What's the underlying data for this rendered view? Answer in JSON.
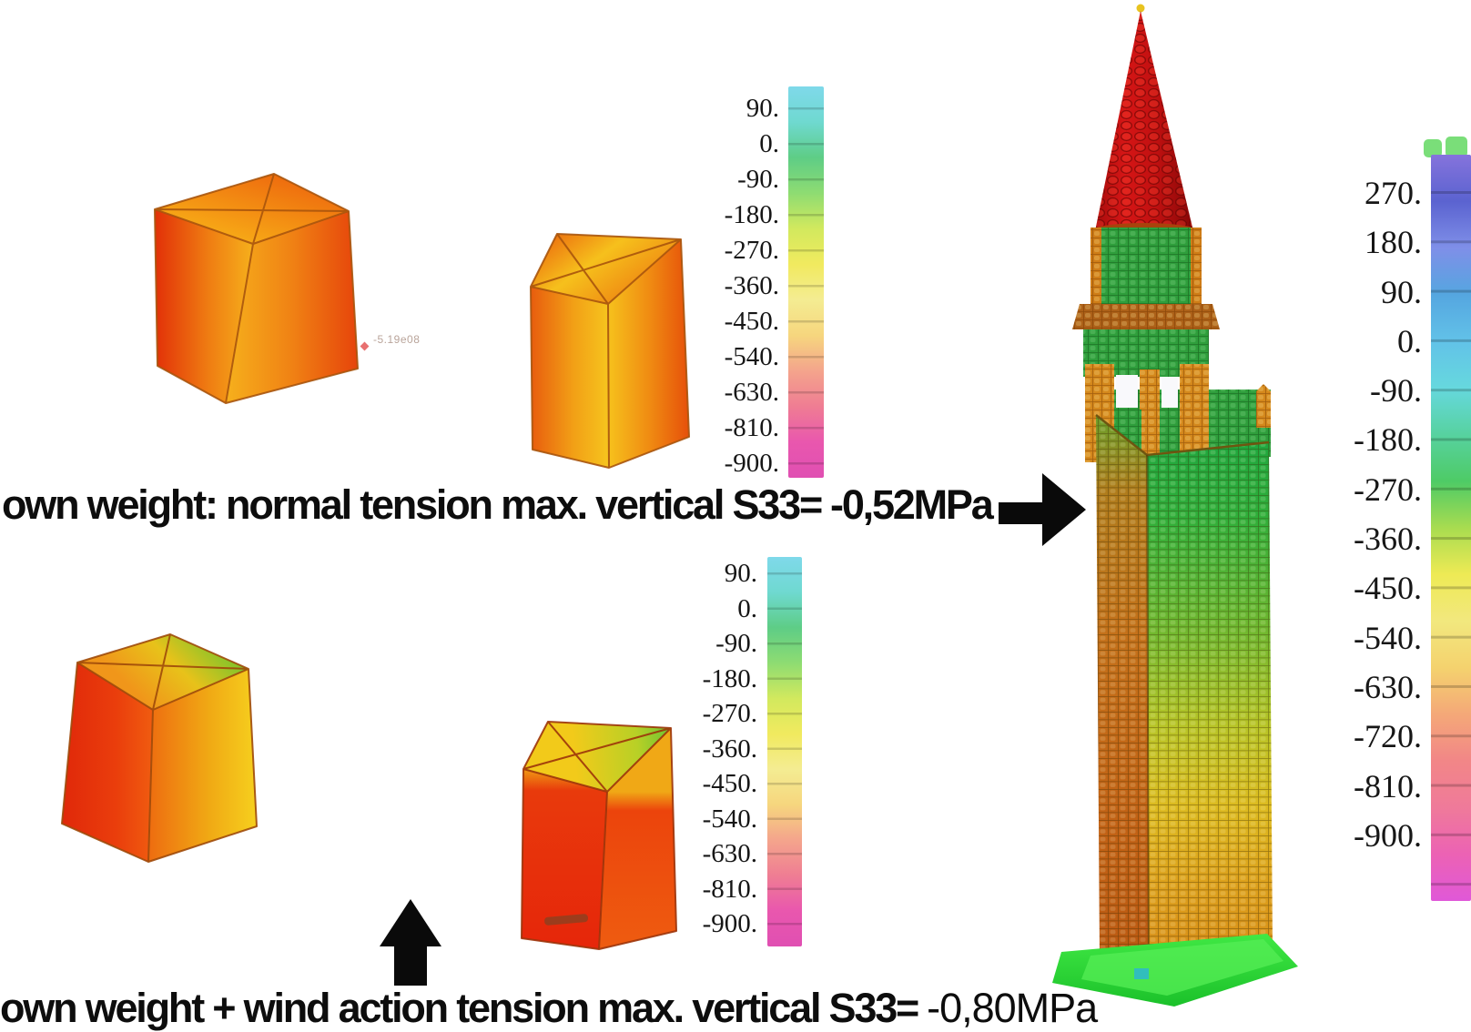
{
  "captions": {
    "top": {
      "text": "own weight: normal tension max. vertical S33=",
      "value": "-0,52MPa"
    },
    "bottom": {
      "text": "own weight + wind action tension max. vertical S33=",
      "value": "-0,80MPa"
    }
  },
  "annotations": {
    "cube_node_value": "-5.19e08"
  },
  "legends": {
    "upper": {
      "values": [
        "90.",
        "0.",
        "-90.",
        "-180.",
        "-270.",
        "-360.",
        "-450.",
        "-540.",
        "-630.",
        "-810.",
        "-900."
      ],
      "colors": [
        "#7fd9ea",
        "#6fd9d0",
        "#5ecd86",
        "#8edc72",
        "#d2e95e",
        "#f1ea5f",
        "#f4ec92",
        "#f6d67e",
        "#f4a48c",
        "#ef7d93",
        "#e957ae",
        "#e04fb2"
      ]
    },
    "lower": {
      "values": [
        "90.",
        "0.",
        "-90.",
        "-180.",
        "-270.",
        "-360.",
        "-450.",
        "-540.",
        "-630.",
        "-810.",
        "-900."
      ],
      "colors": [
        "#7fd9ea",
        "#6fd9d0",
        "#5ecd86",
        "#8edc72",
        "#d2e95e",
        "#f1ea5f",
        "#f4ec92",
        "#f6d67e",
        "#f4a48c",
        "#ef7d93",
        "#e957ae",
        "#e04fb2"
      ]
    },
    "tower": {
      "values": [
        "270.",
        "180.",
        "90.",
        "0.",
        "-90.",
        "-180.",
        "-270.",
        "-360.",
        "-450.",
        "-540.",
        "-630.",
        "-720.",
        "-810.",
        "-900."
      ],
      "colors": [
        "#8573dc",
        "#5b63d0",
        "#7f8fe8",
        "#55a6e0",
        "#62c2e8",
        "#66d8de",
        "#57d2a0",
        "#4ecb66",
        "#a8dc50",
        "#eeea55",
        "#f2e87e",
        "#f4d26e",
        "#f4a878",
        "#f28687",
        "#ef7a9a",
        "#ec62b4",
        "#e058d8"
      ]
    }
  },
  "icons": {
    "right_arrow": "right-arrow",
    "up_arrow": "up-arrow"
  },
  "colors": {
    "spire_red": "#c91010",
    "shaft_green": "#2fa040",
    "shaft_orange": "#d98f1a",
    "base_green": "#2ade35",
    "cube_orange": "#ef7d12",
    "cube_red": "#e6300a",
    "cube_yellow": "#f6c51e",
    "arrow_black": "#0a0a0a"
  }
}
